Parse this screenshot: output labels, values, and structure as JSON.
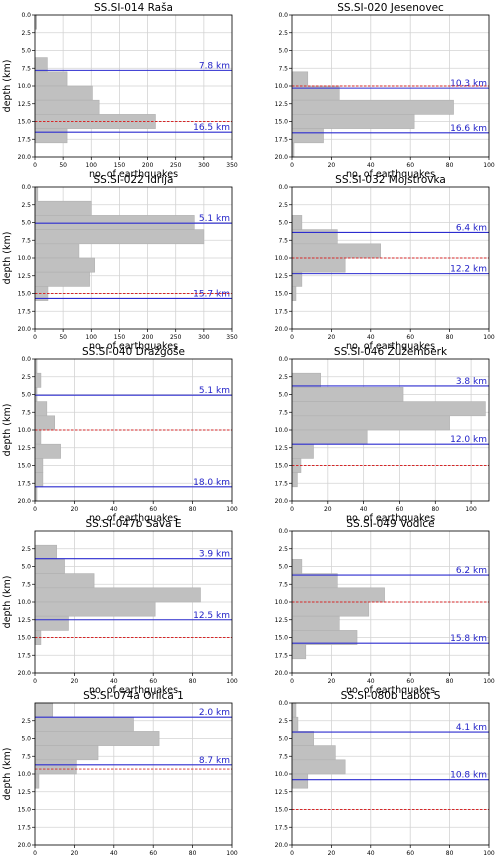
{
  "layout": {
    "colors": {
      "bar": "#c0c0c0",
      "bar_edge": "#b0b0b0",
      "grid": "#d3d3d3",
      "depth_line": "#2c2ccf",
      "depth_label": "#2323c8",
      "red_line": "#d62728",
      "axis": "#000000"
    }
  },
  "chart_data": [
    {
      "type": "bar",
      "orientation": "horizontal",
      "title": "SS.SI-014 Raša",
      "xlabel": "no. of earthquakes",
      "ylabel": "depth (km)",
      "xlim": [
        0,
        350
      ],
      "ylim": [
        20,
        0
      ],
      "xticks": [
        "0",
        "50",
        "100",
        "150",
        "200",
        "250",
        "300",
        "350"
      ],
      "yticks": [
        "0.0",
        "2.5",
        "5.0",
        "7.5",
        "10.0",
        "12.5",
        "15.0",
        "17.5",
        "20.0"
      ],
      "show_ylabel": true,
      "bin_width_km": 2,
      "depth_bins": [
        0,
        2,
        4,
        6,
        8,
        10,
        12,
        14,
        16,
        18
      ],
      "counts": [
        3,
        0,
        0,
        22,
        57,
        102,
        114,
        214,
        57,
        0
      ],
      "lines": [
        {
          "depth_km": 7.8,
          "label": "7.8 km",
          "style": "solid-blue"
        },
        {
          "depth_km": 16.5,
          "label": "16.5 km",
          "style": "solid-blue"
        },
        {
          "depth_km": 15.0,
          "label": "",
          "style": "dashed-red"
        }
      ]
    },
    {
      "type": "bar",
      "orientation": "horizontal",
      "title": "SS.SI-020 Jesenovec",
      "xlabel": "no. of earthquakes",
      "ylabel": "depth (km)",
      "xlim": [
        0,
        100
      ],
      "ylim": [
        20,
        0
      ],
      "xticks": [
        "0",
        "20",
        "40",
        "60",
        "80",
        "100"
      ],
      "yticks": [
        "0.0",
        "2.5",
        "5.0",
        "7.5",
        "10.0",
        "12.5",
        "15.0",
        "17.5",
        "20.0"
      ],
      "show_ylabel": false,
      "bin_width_km": 2,
      "depth_bins": [
        0,
        2,
        4,
        6,
        8,
        10,
        12,
        14,
        16,
        18
      ],
      "counts": [
        0,
        0,
        0,
        0,
        8,
        24,
        82,
        62,
        16,
        1
      ],
      "lines": [
        {
          "depth_km": 10.3,
          "label": "10.3 km",
          "style": "solid-blue"
        },
        {
          "depth_km": 16.6,
          "label": "16.6 km",
          "style": "solid-blue"
        },
        {
          "depth_km": 10.0,
          "label": "",
          "style": "dashed-red"
        }
      ]
    },
    {
      "type": "bar",
      "orientation": "horizontal",
      "title": "SS.SI-022 Idrija",
      "xlabel": "no. of earthquakes",
      "ylabel": "depth (km)",
      "xlim": [
        0,
        350
      ],
      "ylim": [
        20,
        0
      ],
      "xticks": [
        "0",
        "50",
        "100",
        "150",
        "200",
        "250",
        "300",
        "350"
      ],
      "yticks": [
        "0.0",
        "2.5",
        "5.0",
        "7.5",
        "10.0",
        "12.5",
        "15.0",
        "17.5",
        "20.0"
      ],
      "show_ylabel": true,
      "bin_width_km": 2,
      "depth_bins": [
        0,
        2,
        4,
        6,
        8,
        10,
        12,
        14,
        16,
        18
      ],
      "counts": [
        5,
        100,
        283,
        300,
        78,
        106,
        97,
        23,
        0,
        0
      ],
      "lines": [
        {
          "depth_km": 5.1,
          "label": "5.1 km",
          "style": "solid-blue"
        },
        {
          "depth_km": 15.7,
          "label": "15.7 km",
          "style": "solid-blue"
        },
        {
          "depth_km": 15.0,
          "label": "",
          "style": "dashed-red"
        }
      ]
    },
    {
      "type": "bar",
      "orientation": "horizontal",
      "title": "SS.SI-032 Mojstrovka",
      "xlabel": "no. of earthquakes",
      "ylabel": "depth (km)",
      "xlim": [
        0,
        100
      ],
      "ylim": [
        20,
        0
      ],
      "xticks": [
        "0",
        "20",
        "40",
        "60",
        "80",
        "100"
      ],
      "yticks": [
        "0.0",
        "2.5",
        "5.0",
        "7.5",
        "10.0",
        "12.5",
        "15.0",
        "17.5",
        "20.0"
      ],
      "show_ylabel": false,
      "bin_width_km": 2,
      "depth_bins": [
        0,
        2,
        4,
        6,
        8,
        10,
        12,
        14,
        16,
        18
      ],
      "counts": [
        0,
        0,
        5,
        23,
        45,
        27,
        5,
        2,
        0,
        0
      ],
      "lines": [
        {
          "depth_km": 6.4,
          "label": "6.4 km",
          "style": "solid-blue"
        },
        {
          "depth_km": 12.2,
          "label": "12.2 km",
          "style": "solid-blue"
        },
        {
          "depth_km": 10.0,
          "label": "",
          "style": "dashed-red"
        }
      ]
    },
    {
      "type": "bar",
      "orientation": "horizontal",
      "title": "SS.SI-040 Dražgoše",
      "xlabel": "no. of earthquakes",
      "ylabel": "depth (km)",
      "xlim": [
        0,
        100
      ],
      "ylim": [
        20,
        0
      ],
      "xticks": [
        "0",
        "20",
        "40",
        "60",
        "80",
        "100"
      ],
      "yticks": [
        "0.0",
        "2.5",
        "5.0",
        "7.5",
        "10.0",
        "12.5",
        "15.0",
        "17.5",
        "20.0"
      ],
      "show_ylabel": true,
      "bin_width_km": 2,
      "depth_bins": [
        0,
        2,
        4,
        6,
        8,
        10,
        12,
        14,
        16,
        18
      ],
      "counts": [
        1,
        3,
        1,
        6,
        10,
        3,
        13,
        4,
        4,
        1
      ],
      "lines": [
        {
          "depth_km": 5.1,
          "label": "5.1 km",
          "style": "solid-blue"
        },
        {
          "depth_km": 18.0,
          "label": "18.0 km",
          "style": "solid-blue"
        },
        {
          "depth_km": 10.0,
          "label": "",
          "style": "dashed-red"
        }
      ]
    },
    {
      "type": "bar",
      "orientation": "horizontal",
      "title": "SS.SI-046 Žužemberk",
      "xlabel": "no. of earthquakes",
      "ylabel": "depth (km)",
      "xlim": [
        0,
        110
      ],
      "ylim": [
        20,
        0
      ],
      "xticks": [
        "0",
        "20",
        "40",
        "60",
        "80",
        "100"
      ],
      "yticks": [
        "0.0",
        "2.5",
        "5.0",
        "7.5",
        "10.0",
        "12.5",
        "15.0",
        "17.5",
        "20.0"
      ],
      "show_ylabel": false,
      "bin_width_km": 2,
      "depth_bins": [
        0,
        2,
        4,
        6,
        8,
        10,
        12,
        14,
        16,
        18
      ],
      "counts": [
        0,
        16,
        62,
        108,
        88,
        42,
        12,
        5,
        3,
        0
      ],
      "lines": [
        {
          "depth_km": 3.8,
          "label": "3.8 km",
          "style": "solid-blue"
        },
        {
          "depth_km": 12.0,
          "label": "12.0 km",
          "style": "solid-blue"
        },
        {
          "depth_km": 15.0,
          "label": "",
          "style": "dashed-red"
        }
      ]
    },
    {
      "type": "bar",
      "orientation": "horizontal",
      "title": "SS.SI-047b Sava E",
      "xlabel": "no. of earthquakes",
      "ylabel": "depth (km)",
      "xlim": [
        0,
        100
      ],
      "ylim": [
        20,
        0
      ],
      "xticks": [
        "0",
        "20",
        "40",
        "60",
        "80",
        "100"
      ],
      "yticks": [
        "2.5",
        "5.0",
        "7.5",
        "10.0",
        "12.5",
        "15.0",
        "17.5",
        "20.0"
      ],
      "show_ylabel": true,
      "bin_width_km": 2,
      "depth_bins": [
        0,
        2,
        4,
        6,
        8,
        10,
        12,
        14,
        16,
        18
      ],
      "counts": [
        0,
        11,
        15,
        30,
        84,
        61,
        17,
        3,
        0,
        0
      ],
      "lines": [
        {
          "depth_km": 3.9,
          "label": "3.9 km",
          "style": "solid-blue"
        },
        {
          "depth_km": 12.5,
          "label": "12.5 km",
          "style": "solid-blue"
        },
        {
          "depth_km": 15.0,
          "label": "",
          "style": "dashed-red"
        }
      ]
    },
    {
      "type": "bar",
      "orientation": "horizontal",
      "title": "SS.SI-049 Vodice",
      "xlabel": "no. of earthquakes",
      "ylabel": "depth (km)",
      "xlim": [
        0,
        100
      ],
      "ylim": [
        20,
        0
      ],
      "xticks": [
        "0",
        "20",
        "40",
        "60",
        "80",
        "100"
      ],
      "yticks": [
        "0.0",
        "2.5",
        "5.0",
        "7.5",
        "10.0",
        "12.5",
        "15.0",
        "17.5",
        "20.0"
      ],
      "show_ylabel": false,
      "bin_width_km": 2,
      "depth_bins": [
        0,
        2,
        4,
        6,
        8,
        10,
        12,
        14,
        16,
        18
      ],
      "counts": [
        0,
        0,
        5,
        23,
        47,
        39,
        24,
        33,
        7,
        0
      ],
      "lines": [
        {
          "depth_km": 6.2,
          "label": "6.2 km",
          "style": "solid-blue"
        },
        {
          "depth_km": 15.8,
          "label": "15.8 km",
          "style": "solid-blue"
        },
        {
          "depth_km": 10.0,
          "label": "",
          "style": "dashed-red"
        }
      ]
    },
    {
      "type": "bar",
      "orientation": "horizontal",
      "title": "SS.SI-074a Orlica 1",
      "xlabel": "no. of earthquakes",
      "ylabel": "depth (km)",
      "xlim": [
        0,
        100
      ],
      "ylim": [
        20,
        0
      ],
      "xticks": [
        "0",
        "20",
        "40",
        "60",
        "80",
        "100"
      ],
      "yticks": [
        "2.5",
        "5.0",
        "7.5",
        "10.0",
        "12.5",
        "15.0",
        "17.5",
        "20.0"
      ],
      "show_ylabel": true,
      "bin_width_km": 2,
      "depth_bins": [
        0,
        2,
        4,
        6,
        8,
        10,
        12,
        14,
        16,
        18
      ],
      "counts": [
        9,
        50,
        63,
        32,
        21,
        2,
        0,
        0,
        0,
        0
      ],
      "lines": [
        {
          "depth_km": 2.0,
          "label": "2.0 km",
          "style": "solid-blue"
        },
        {
          "depth_km": 8.7,
          "label": "8.7 km",
          "style": "solid-blue"
        },
        {
          "depth_km": 9.3,
          "label": "",
          "style": "dashed-red"
        }
      ]
    },
    {
      "type": "bar",
      "orientation": "horizontal",
      "title": "SS.SI-080b Labot S",
      "xlabel": "no. of earthquakes",
      "ylabel": "depth (km)",
      "xlim": [
        0,
        100
      ],
      "ylim": [
        20,
        0
      ],
      "xticks": [
        "0",
        "20",
        "40",
        "60",
        "80",
        "100"
      ],
      "yticks": [
        "0.0",
        "2.5",
        "5.0",
        "7.5",
        "10.0",
        "12.5",
        "15.0",
        "17.5",
        "20.0"
      ],
      "show_ylabel": false,
      "bin_width_km": 2,
      "depth_bins": [
        0,
        2,
        4,
        6,
        8,
        10,
        12,
        14,
        16,
        18
      ],
      "counts": [
        2,
        3,
        11,
        22,
        27,
        8,
        0,
        0,
        0,
        0
      ],
      "lines": [
        {
          "depth_km": 4.1,
          "label": "4.1 km",
          "style": "solid-blue"
        },
        {
          "depth_km": 10.8,
          "label": "10.8 km",
          "style": "solid-blue"
        },
        {
          "depth_km": 15.0,
          "label": "",
          "style": "dashed-red"
        }
      ]
    }
  ]
}
